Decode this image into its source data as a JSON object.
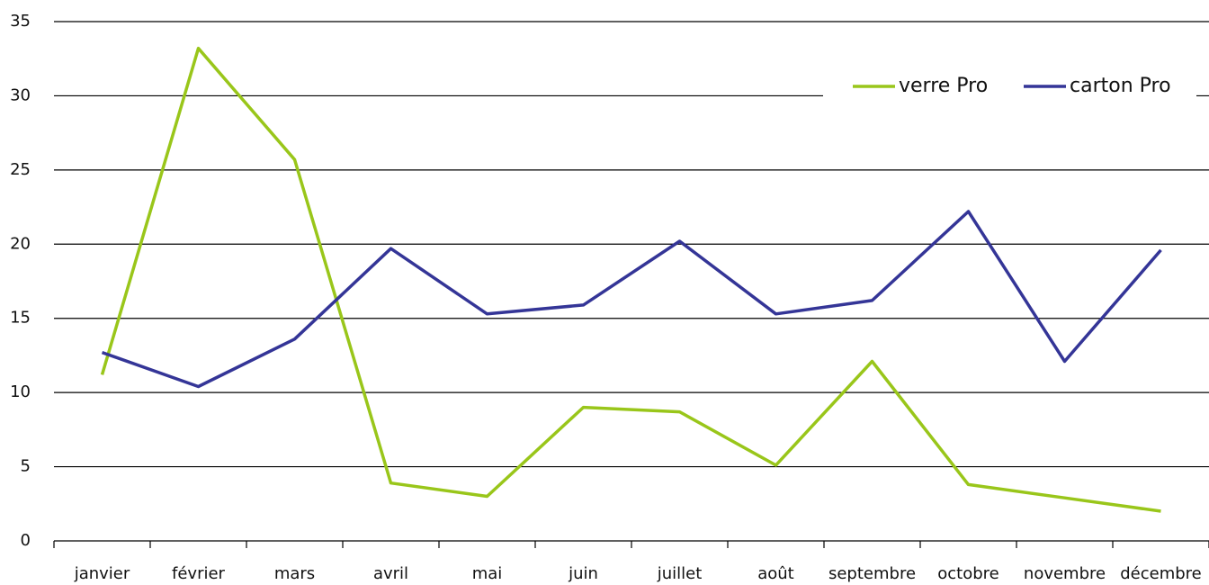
{
  "chart_data": {
    "type": "line",
    "categories": [
      "janvier",
      "février",
      "mars",
      "avril",
      "mai",
      "juin",
      "juillet",
      "août",
      "septembre",
      "octobre",
      "novembre",
      "décembre"
    ],
    "series": [
      {
        "name": "verre Pro",
        "color": "#99c61a",
        "values": [
          11.2,
          33.2,
          25.7,
          3.9,
          3.0,
          9.0,
          8.7,
          5.1,
          12.1,
          3.8,
          2.9,
          2.0
        ]
      },
      {
        "name": "carton Pro",
        "color": "#343597",
        "values": [
          12.7,
          10.4,
          13.6,
          19.7,
          15.3,
          15.9,
          20.2,
          15.3,
          16.2,
          22.2,
          12.1,
          19.6
        ]
      }
    ],
    "ylim": [
      0,
      35
    ],
    "yticks": [
      0,
      5,
      10,
      15,
      20,
      25,
      30,
      35
    ],
    "grid": true,
    "legend": "upper right"
  }
}
